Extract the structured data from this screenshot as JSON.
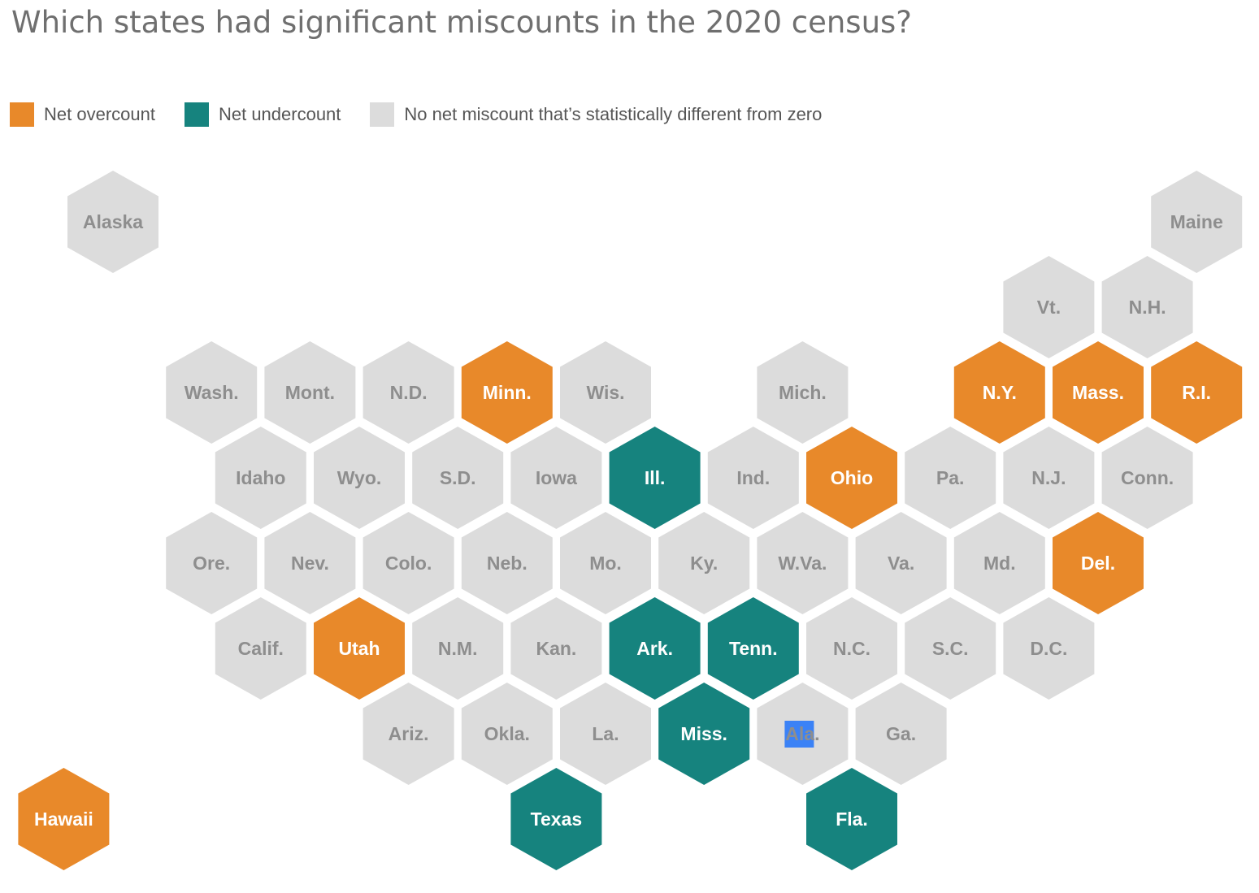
{
  "title": "Which states had significant miscounts in the 2020 census?",
  "legend": [
    {
      "key": "over",
      "label": "Net overcount",
      "color": "#e8892a"
    },
    {
      "key": "under",
      "label": "Net undercount",
      "color": "#16837e"
    },
    {
      "key": "none",
      "label": "No net miscount that’s statistically different from zero",
      "color": "#dcdcdc"
    }
  ],
  "colors": {
    "over": "#e8892a",
    "under": "#16837e",
    "none": "#dcdcdc",
    "label_light": "#8e8e8e",
    "label_dark": "#ffffff",
    "highlight": "#3b82f6"
  },
  "states": [
    {
      "label": "Alaska",
      "status": "none",
      "row": 0,
      "col": 0
    },
    {
      "label": "Maine",
      "status": "none",
      "row": 0,
      "col": 11
    },
    {
      "label": "Vt.",
      "status": "none",
      "row": 1,
      "col": 9.5
    },
    {
      "label": "N.H.",
      "status": "none",
      "row": 1,
      "col": 10.5
    },
    {
      "label": "Wash.",
      "status": "none",
      "row": 2,
      "col": 1
    },
    {
      "label": "Mont.",
      "status": "none",
      "row": 2,
      "col": 2
    },
    {
      "label": "N.D.",
      "status": "none",
      "row": 2,
      "col": 3
    },
    {
      "label": "Minn.",
      "status": "over",
      "row": 2,
      "col": 4
    },
    {
      "label": "Wis.",
      "status": "none",
      "row": 2,
      "col": 5
    },
    {
      "label": "Mich.",
      "status": "none",
      "row": 2,
      "col": 7
    },
    {
      "label": "N.Y.",
      "status": "over",
      "row": 2,
      "col": 9
    },
    {
      "label": "Mass.",
      "status": "over",
      "row": 2,
      "col": 10
    },
    {
      "label": "R.I.",
      "status": "over",
      "row": 2,
      "col": 11
    },
    {
      "label": "Idaho",
      "status": "none",
      "row": 3,
      "col": 1.5
    },
    {
      "label": "Wyo.",
      "status": "none",
      "row": 3,
      "col": 2.5
    },
    {
      "label": "S.D.",
      "status": "none",
      "row": 3,
      "col": 3.5
    },
    {
      "label": "Iowa",
      "status": "none",
      "row": 3,
      "col": 4.5
    },
    {
      "label": "Ill.",
      "status": "under",
      "row": 3,
      "col": 5.5
    },
    {
      "label": "Ind.",
      "status": "none",
      "row": 3,
      "col": 6.5
    },
    {
      "label": "Ohio",
      "status": "over",
      "row": 3,
      "col": 7.5
    },
    {
      "label": "Pa.",
      "status": "none",
      "row": 3,
      "col": 8.5
    },
    {
      "label": "N.J.",
      "status": "none",
      "row": 3,
      "col": 9.5
    },
    {
      "label": "Conn.",
      "status": "none",
      "row": 3,
      "col": 10.5
    },
    {
      "label": "Ore.",
      "status": "none",
      "row": 4,
      "col": 1
    },
    {
      "label": "Nev.",
      "status": "none",
      "row": 4,
      "col": 2
    },
    {
      "label": "Colo.",
      "status": "none",
      "row": 4,
      "col": 3
    },
    {
      "label": "Neb.",
      "status": "none",
      "row": 4,
      "col": 4
    },
    {
      "label": "Mo.",
      "status": "none",
      "row": 4,
      "col": 5
    },
    {
      "label": "Ky.",
      "status": "none",
      "row": 4,
      "col": 6
    },
    {
      "label": "W.Va.",
      "status": "none",
      "row": 4,
      "col": 7
    },
    {
      "label": "Va.",
      "status": "none",
      "row": 4,
      "col": 8
    },
    {
      "label": "Md.",
      "status": "none",
      "row": 4,
      "col": 9
    },
    {
      "label": "Del.",
      "status": "over",
      "row": 4,
      "col": 10
    },
    {
      "label": "Calif.",
      "status": "none",
      "row": 5,
      "col": 1.5
    },
    {
      "label": "Utah",
      "status": "over",
      "row": 5,
      "col": 2.5
    },
    {
      "label": "N.M.",
      "status": "none",
      "row": 5,
      "col": 3.5
    },
    {
      "label": "Kan.",
      "status": "none",
      "row": 5,
      "col": 4.5
    },
    {
      "label": "Ark.",
      "status": "under",
      "row": 5,
      "col": 5.5
    },
    {
      "label": "Tenn.",
      "status": "under",
      "row": 5,
      "col": 6.5
    },
    {
      "label": "N.C.",
      "status": "none",
      "row": 5,
      "col": 7.5
    },
    {
      "label": "S.C.",
      "status": "none",
      "row": 5,
      "col": 8.5
    },
    {
      "label": "D.C.",
      "status": "none",
      "row": 5,
      "col": 9.5
    },
    {
      "label": "Ariz.",
      "status": "none",
      "row": 6,
      "col": 3
    },
    {
      "label": "Okla.",
      "status": "none",
      "row": 6,
      "col": 4
    },
    {
      "label": "La.",
      "status": "none",
      "row": 6,
      "col": 5
    },
    {
      "label": "Miss.",
      "status": "under",
      "row": 6,
      "col": 6
    },
    {
      "label": "Ala.",
      "status": "none",
      "row": 6,
      "col": 7,
      "selected": true
    },
    {
      "label": "Ga.",
      "status": "none",
      "row": 6,
      "col": 8
    },
    {
      "label": "Hawaii",
      "status": "over",
      "row": 7,
      "col": -0.5
    },
    {
      "label": "Texas",
      "status": "under",
      "row": 7,
      "col": 4.5
    },
    {
      "label": "Fla.",
      "status": "under",
      "row": 7,
      "col": 7.5
    }
  ]
}
